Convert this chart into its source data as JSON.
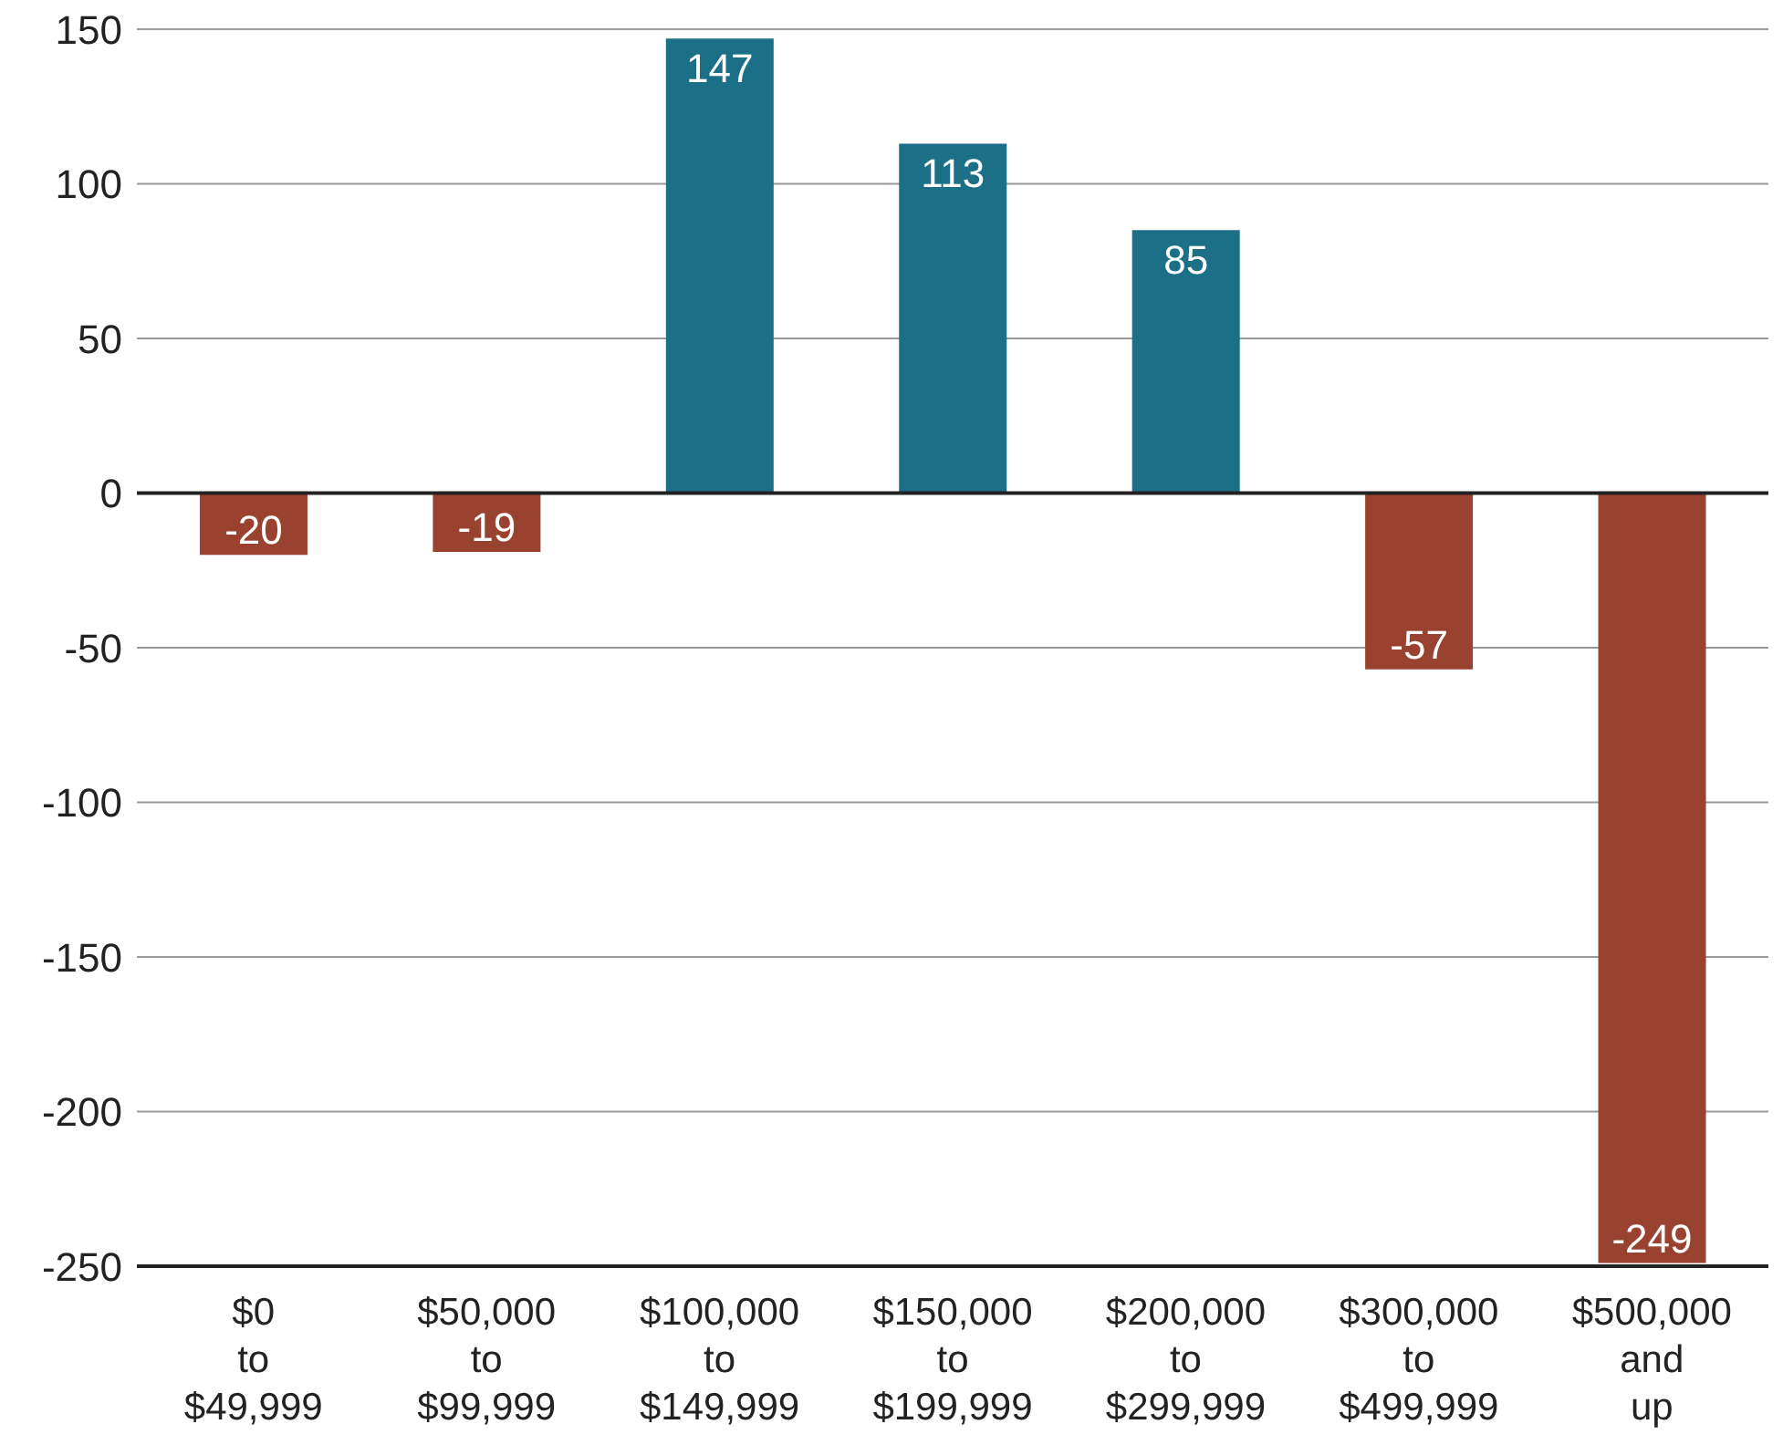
{
  "chart_data": {
    "type": "bar",
    "categories": [
      "$0 to $49,999",
      "$50,000 to $99,999",
      "$100,000 to $149,999",
      "$150,000 to $199,999",
      "$200,000 to $299,999",
      "$300,000 to $499,999",
      "$500,000 and up"
    ],
    "values": [
      -20,
      -19,
      147,
      113,
      85,
      -57,
      -249
    ],
    "colors": [
      "#9a4230",
      "#9a4230",
      "#1b6f87",
      "#1b6f87",
      "#1b6f87",
      "#9a4230",
      "#9a4230"
    ],
    "ylim": [
      -250,
      150
    ],
    "yticks": [
      -250,
      -200,
      -150,
      -100,
      -50,
      0,
      50,
      100,
      150
    ],
    "grid": "y",
    "data_labels": true,
    "legend": false
  }
}
